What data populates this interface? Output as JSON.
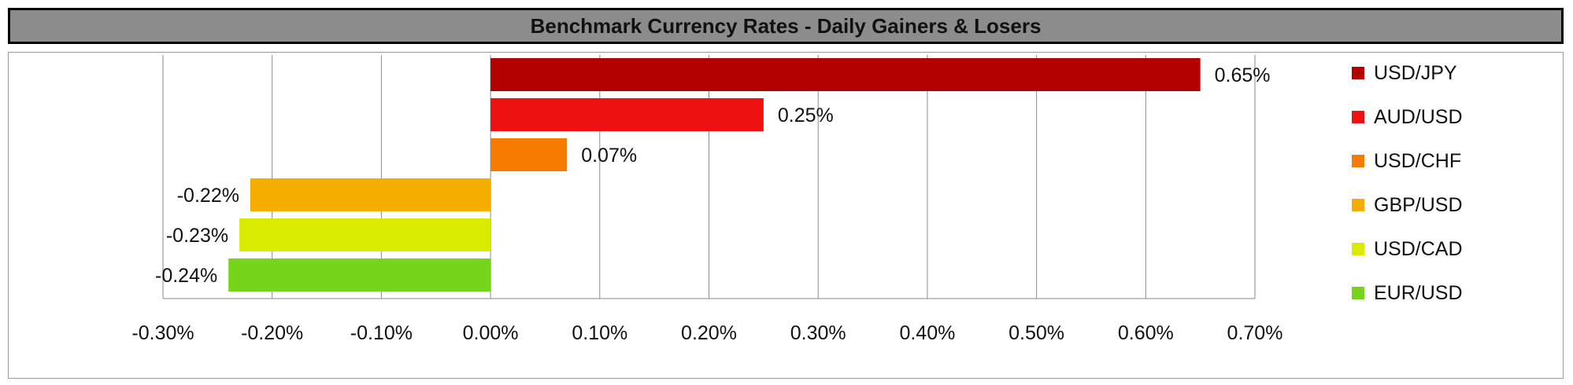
{
  "chart_data": {
    "type": "bar",
    "orientation": "horizontal",
    "title": "Benchmark Currency Rates - Daily Gainers & Losers",
    "categories": [
      "USD/JPY",
      "AUD/USD",
      "USD/CHF",
      "GBP/USD",
      "USD/CAD",
      "EUR/USD"
    ],
    "values": [
      0.65,
      0.25,
      0.07,
      -0.22,
      -0.23,
      -0.24
    ],
    "data_labels": [
      "0.65%",
      "0.25%",
      "0.07%",
      "-0.22%",
      "-0.23%",
      "-0.24%"
    ],
    "colors": [
      "#b30000",
      "#ee1111",
      "#f57c00",
      "#f5ad00",
      "#d8eb00",
      "#76d41a"
    ],
    "xlim": [
      -0.3,
      0.7
    ],
    "xticks": [
      -0.3,
      -0.2,
      -0.1,
      0.0,
      0.1,
      0.2,
      0.3,
      0.4,
      0.5,
      0.6,
      0.7
    ],
    "xtick_labels": [
      "-0.30%",
      "-0.20%",
      "-0.10%",
      "0.00%",
      "0.10%",
      "0.20%",
      "0.30%",
      "0.40%",
      "0.50%",
      "0.60%",
      "0.70%"
    ],
    "xlabel": "",
    "ylabel": "",
    "grid": "vertical",
    "legend": {
      "position": "right",
      "entries": [
        "USD/JPY",
        "AUD/USD",
        "USD/CHF",
        "GBP/USD",
        "USD/CAD",
        "EUR/USD"
      ]
    }
  }
}
